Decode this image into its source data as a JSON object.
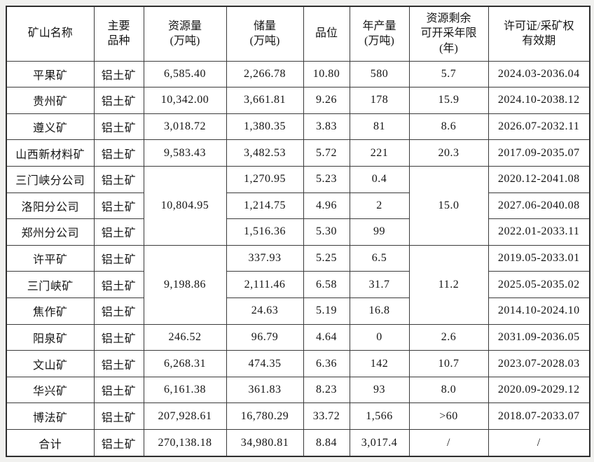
{
  "page": {
    "background_color": "#f1f1ef",
    "border_color": "#3b3b3b"
  },
  "table": {
    "headers": [
      {
        "label": "矿山名称"
      },
      {
        "label": "主要\n品种"
      },
      {
        "label": "资源量\n(万吨)"
      },
      {
        "label": "储量\n(万吨)"
      },
      {
        "label": "品位"
      },
      {
        "label": "年产量\n(万吨)"
      },
      {
        "label": "资源剩余\n可开采年限\n(年)"
      },
      {
        "label": "许可证/采矿权\n有效期"
      }
    ],
    "rows": [
      {
        "cells": [
          "平果矿",
          "铝土矿",
          "6,585.40",
          "2,266.78",
          "10.80",
          "580",
          "5.7",
          "2024.03-2036.04"
        ]
      },
      {
        "cells": [
          "贵州矿",
          "铝土矿",
          "10,342.00",
          "3,661.81",
          "9.26",
          "178",
          "15.9",
          "2024.10-2038.12"
        ]
      },
      {
        "cells": [
          "遵义矿",
          "铝土矿",
          "3,018.72",
          "1,380.35",
          "3.83",
          "81",
          "8.6",
          "2026.07-2032.11"
        ]
      },
      {
        "cells": [
          "山西新材料矿",
          "铝土矿",
          "9,583.43",
          "3,482.53",
          "5.72",
          "221",
          "20.3",
          "2017.09-2035.07"
        ]
      },
      {
        "cells": [
          "三门峡分公司",
          "铝土矿",
          {
            "text": "10,804.95",
            "rowspan": 3
          },
          "1,270.95",
          "5.23",
          "0.4",
          {
            "text": "15.0",
            "rowspan": 3
          },
          "2020.12-2041.08"
        ]
      },
      {
        "cells": [
          "洛阳分公司",
          "铝土矿",
          "1,214.75",
          "4.96",
          "2",
          "2027.06-2040.08"
        ]
      },
      {
        "cells": [
          "郑州分公司",
          "铝土矿",
          "1,516.36",
          "5.30",
          "99",
          "2022.01-2033.11"
        ]
      },
      {
        "cells": [
          "许平矿",
          "铝土矿",
          {
            "text": "9,198.86",
            "rowspan": 3
          },
          "337.93",
          "5.25",
          "6.5",
          {
            "text": "11.2",
            "rowspan": 3
          },
          "2019.05-2033.01"
        ]
      },
      {
        "cells": [
          "三门峡矿",
          "铝土矿",
          "2,111.46",
          "6.58",
          "31.7",
          "2025.05-2035.02"
        ]
      },
      {
        "cells": [
          "焦作矿",
          "铝土矿",
          "24.63",
          "5.19",
          "16.8",
          "2014.10-2024.10"
        ]
      },
      {
        "cells": [
          "阳泉矿",
          "铝土矿",
          "246.52",
          "96.79",
          "4.64",
          "0",
          "2.6",
          "2031.09-2036.05"
        ]
      },
      {
        "cells": [
          "文山矿",
          "铝土矿",
          "6,268.31",
          "474.35",
          "6.36",
          "142",
          "10.7",
          "2023.07-2028.03"
        ]
      },
      {
        "cells": [
          "华兴矿",
          "铝土矿",
          "6,161.38",
          "361.83",
          "8.23",
          "93",
          "8.0",
          "2020.09-2029.12"
        ]
      },
      {
        "cells": [
          "博法矿",
          "铝土矿",
          "207,928.61",
          "16,780.29",
          "33.72",
          "1,566",
          ">60",
          "2018.07-2033.07"
        ]
      },
      {
        "cells": [
          "合计",
          "铝土矿",
          "270,138.18",
          "34,980.81",
          "8.84",
          "3,017.4",
          "/",
          "/"
        ]
      }
    ]
  }
}
